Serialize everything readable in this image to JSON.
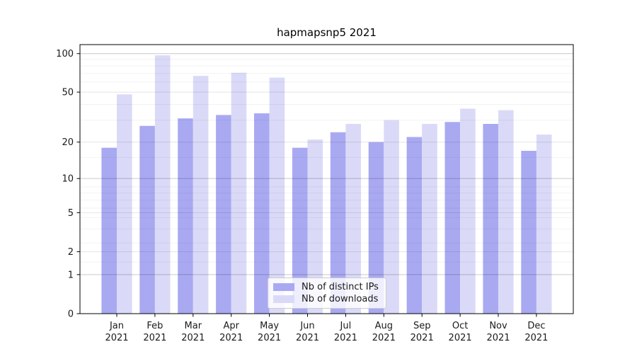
{
  "title": "hapmapsnp5 2021",
  "chart_data": {
    "type": "bar",
    "title": "hapmapsnp5 2021",
    "months": [
      "Jan",
      "Feb",
      "Mar",
      "Apr",
      "May",
      "Jun",
      "Jul",
      "Aug",
      "Sep",
      "Oct",
      "Nov",
      "Dec"
    ],
    "year": "2021",
    "categories": [
      "Jan 2021",
      "Feb 2021",
      "Mar 2021",
      "Apr 2021",
      "May 2021",
      "Jun 2021",
      "Jul 2021",
      "Aug 2021",
      "Sep 2021",
      "Oct 2021",
      "Nov 2021",
      "Dec 2021"
    ],
    "series": [
      {
        "name": "Nb of distinct IPs",
        "color": "#a9a9f2",
        "values": [
          18,
          27,
          31,
          33,
          34,
          18,
          24,
          20,
          22,
          29,
          28,
          17
        ]
      },
      {
        "name": "Nb of downloads",
        "color": "#dadaf8",
        "values": [
          48,
          97,
          67,
          71,
          65,
          21,
          28,
          30,
          28,
          37,
          36,
          23
        ]
      }
    ],
    "yscale": "log1p",
    "ylim": [
      0,
      117.5
    ],
    "y_major_ticks": [
      0,
      1,
      2,
      5,
      10,
      20,
      50,
      100
    ],
    "y_minor_gridlines": [
      1.5,
      2.5,
      3.5,
      4.5,
      5.5,
      6.5,
      7.5,
      8.5,
      15,
      30,
      40,
      60,
      70,
      80,
      90
    ],
    "xlabel": "",
    "ylabel": "",
    "grid": true,
    "legend_position": "lower center"
  },
  "colors": {
    "background": "#ffffff",
    "spine": "#000000",
    "tick_label": "#1a1a1a",
    "grid_strong": "#c9c9c9",
    "grid_soft": "#e4e4e4",
    "grid_minor": "#f2f2f2"
  }
}
